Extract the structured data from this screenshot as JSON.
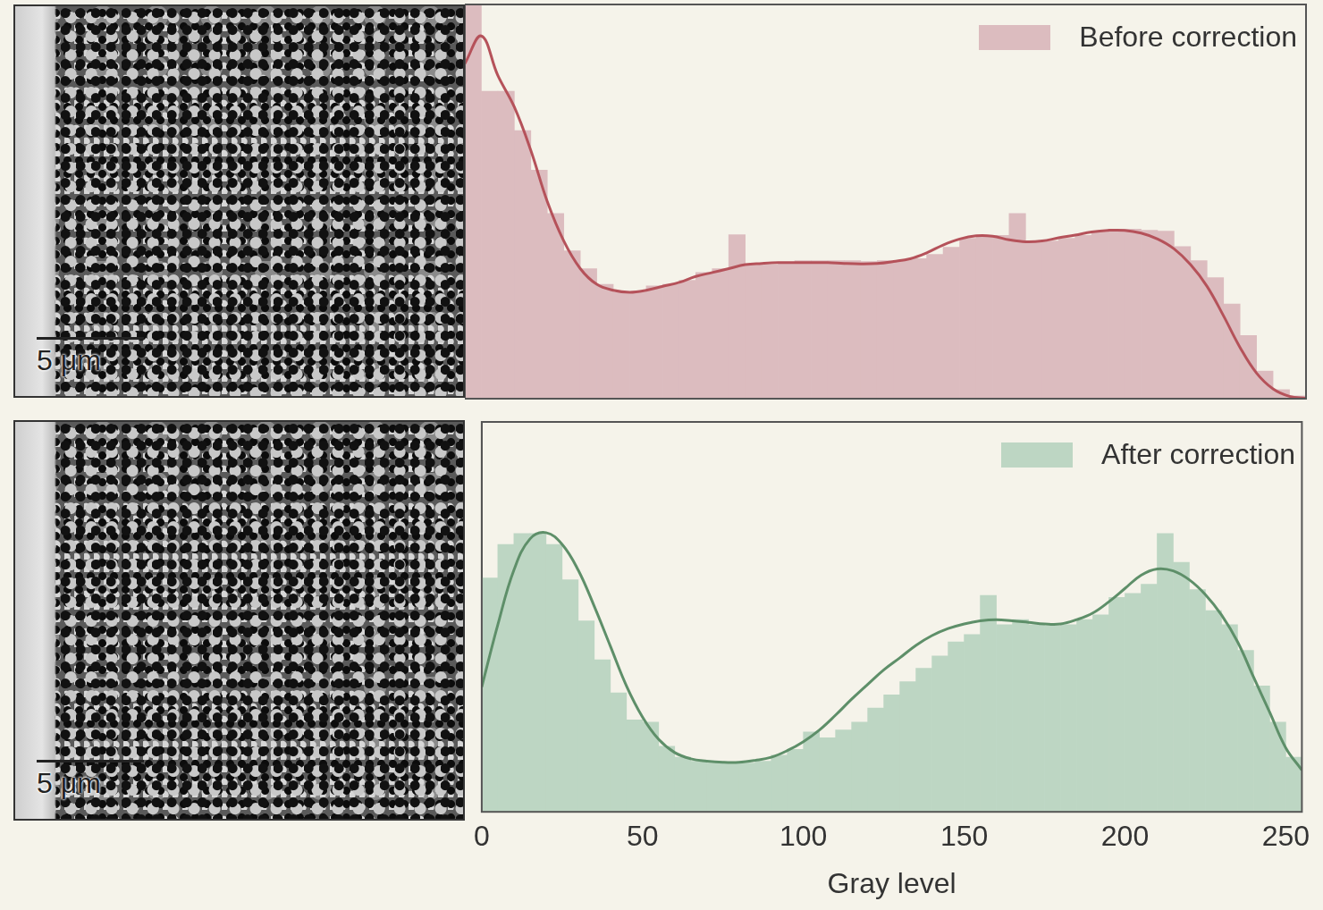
{
  "chart_data": [
    {
      "type": "histogram",
      "bins": [
        0,
        5,
        10,
        15,
        20,
        25,
        30,
        35,
        40,
        45,
        50,
        55,
        60,
        65,
        70,
        75,
        80,
        85,
        90,
        95,
        100,
        105,
        110,
        115,
        120,
        125,
        130,
        135,
        140,
        145,
        150,
        155,
        160,
        165,
        170,
        175,
        180,
        185,
        190,
        195,
        200,
        205,
        210,
        215,
        220,
        225,
        230,
        235,
        240,
        245,
        250,
        255
      ],
      "series": [
        {
          "name": "Before correction",
          "type": "bar",
          "color": "#dcbcbf",
          "values": [
            100,
            78,
            78,
            68,
            58,
            47,
            37.5,
            33,
            29,
            27,
            27,
            28.6,
            29,
            30,
            32,
            33,
            41.6,
            34,
            34,
            34.5,
            35,
            35,
            35,
            35,
            34.8,
            35,
            35,
            35.5,
            36.6,
            38.4,
            40.7,
            41.4,
            41.4,
            47,
            40,
            40,
            40.7,
            41.4,
            42.3,
            43,
            43,
            42.7,
            42.5,
            38.6,
            35,
            30.7,
            24,
            16,
            7,
            2.3,
            0.7
          ]
        },
        {
          "type": "line",
          "color": "#b5525a",
          "line_style": "solid",
          "x": [
            0,
            5,
            10,
            15,
            20,
            25,
            30,
            35,
            40,
            45,
            50,
            55,
            60,
            65,
            70,
            75,
            80,
            85,
            90,
            95,
            100,
            105,
            110,
            115,
            120,
            125,
            130,
            135,
            140,
            145,
            150,
            155,
            160,
            165,
            170,
            175,
            180,
            185,
            190,
            195,
            200,
            205,
            210,
            215,
            220,
            225,
            230,
            235,
            240,
            245,
            250,
            255
          ],
          "values": [
            85,
            92,
            82,
            74,
            63,
            50,
            40,
            33,
            29,
            27.5,
            27,
            27.5,
            28.5,
            29.5,
            31,
            32,
            33,
            34,
            34.3,
            34.5,
            34.5,
            34.5,
            34.5,
            34.3,
            34.2,
            34.3,
            34.8,
            35.5,
            37,
            39,
            40.5,
            41.3,
            41.2,
            40.3,
            39.8,
            40,
            40.8,
            41.5,
            42.3,
            42.7,
            42.7,
            42,
            40.5,
            38,
            34,
            28.5,
            21,
            13,
            6.5,
            2.5,
            0.6,
            0.1
          ]
        }
      ],
      "xlim": [
        0,
        255
      ],
      "ylim": [
        0,
        100
      ],
      "grid": false,
      "legend": "upper right",
      "tick_labels": false
    },
    {
      "type": "histogram",
      "x_label": "Gray level",
      "bins": [
        0,
        5,
        10,
        15,
        20,
        25,
        30,
        35,
        40,
        45,
        50,
        55,
        60,
        65,
        70,
        75,
        80,
        85,
        90,
        95,
        100,
        105,
        110,
        115,
        120,
        125,
        130,
        135,
        140,
        145,
        150,
        155,
        160,
        165,
        170,
        175,
        180,
        185,
        190,
        195,
        200,
        205,
        210,
        215,
        220,
        225,
        230,
        235,
        240,
        245,
        250,
        255
      ],
      "series": [
        {
          "name": "After correction",
          "type": "bar",
          "color": "#bdd6c3",
          "values": [
            60,
            68.6,
            71.4,
            71.4,
            68.6,
            59.5,
            49,
            39,
            30.5,
            23.6,
            23,
            16.8,
            14,
            13,
            12.5,
            12.5,
            12.5,
            13,
            14.5,
            16,
            20.5,
            19,
            21,
            23,
            26.6,
            30,
            33.4,
            36.8,
            40,
            43.6,
            45.5,
            55.5,
            48,
            49.3,
            48,
            47.7,
            48,
            49.3,
            50.5,
            55,
            56,
            58.4,
            71.4,
            64,
            57,
            51.6,
            48,
            41.4,
            32.3,
            23,
            14
          ]
        },
        {
          "type": "line",
          "color": "#5e8f69",
          "line_style": "solid",
          "x": [
            0,
            5,
            10,
            15,
            20,
            25,
            30,
            35,
            40,
            45,
            50,
            55,
            60,
            65,
            70,
            75,
            80,
            85,
            90,
            95,
            100,
            105,
            110,
            115,
            120,
            125,
            130,
            135,
            140,
            145,
            150,
            155,
            160,
            165,
            170,
            175,
            180,
            185,
            190,
            195,
            200,
            205,
            210,
            215,
            220,
            225,
            230,
            235,
            240,
            245,
            250,
            255
          ],
          "values": [
            32,
            48,
            62,
            70,
            71.6,
            68.6,
            62,
            52.7,
            42.5,
            32.3,
            24.3,
            18.6,
            15.2,
            13.6,
            13,
            12.7,
            12.7,
            13.2,
            14,
            15.7,
            18,
            21,
            24.8,
            28.9,
            32.7,
            36.4,
            39.5,
            42.7,
            45.2,
            47,
            48.2,
            49,
            49.3,
            49,
            48.6,
            48.2,
            48.2,
            49.3,
            51,
            53.9,
            57.3,
            60.7,
            62.3,
            61.8,
            59.5,
            55.7,
            50.5,
            43.6,
            34.5,
            25.5,
            16.4,
            10.7
          ]
        }
      ],
      "xlim": [
        0,
        255
      ],
      "xticks": [
        0,
        50,
        100,
        150,
        200,
        250
      ],
      "ylim": [
        0,
        100
      ],
      "grid": false,
      "legend": "upper right",
      "tick_labels": "x"
    }
  ],
  "images": [
    {
      "scale_bar": "5 μm"
    },
    {
      "scale_bar": "5 μm"
    }
  ]
}
